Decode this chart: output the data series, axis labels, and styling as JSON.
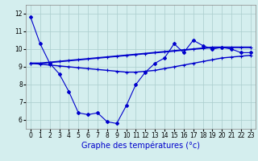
{
  "xlabel": "Graphe des températures (°c)",
  "background_color": "#d4eeee",
  "line_color": "#0000cc",
  "grid_color": "#aacccc",
  "x_hours": [
    0,
    1,
    2,
    3,
    4,
    5,
    6,
    7,
    8,
    9,
    10,
    11,
    12,
    13,
    14,
    15,
    16,
    17,
    18,
    19,
    20,
    21,
    22,
    23
  ],
  "series_volatile": [
    11.8,
    10.3,
    9.2,
    8.6,
    7.6,
    6.4,
    6.3,
    6.4,
    5.9,
    5.8,
    6.8,
    8.0,
    8.7,
    9.2,
    9.5,
    10.3,
    9.8,
    10.5,
    10.2,
    10.0,
    10.1,
    10.0,
    9.8,
    9.8
  ],
  "series_upper": [
    9.2,
    9.2,
    9.25,
    9.3,
    9.35,
    9.4,
    9.45,
    9.5,
    9.55,
    9.6,
    9.65,
    9.7,
    9.75,
    9.8,
    9.85,
    9.9,
    9.95,
    10.0,
    10.05,
    10.1,
    10.1,
    10.1,
    10.1,
    10.1
  ],
  "series_lower": [
    9.2,
    9.15,
    9.1,
    9.05,
    9.0,
    8.95,
    8.9,
    8.85,
    8.8,
    8.75,
    8.7,
    8.7,
    8.75,
    8.8,
    8.9,
    9.0,
    9.1,
    9.2,
    9.3,
    9.4,
    9.5,
    9.55,
    9.6,
    9.65
  ],
  "ylim": [
    5.5,
    12.5
  ],
  "yticks": [
    6,
    7,
    8,
    9,
    10,
    11,
    12
  ],
  "xticks": [
    0,
    1,
    2,
    3,
    4,
    5,
    6,
    7,
    8,
    9,
    10,
    11,
    12,
    13,
    14,
    15,
    16,
    17,
    18,
    19,
    20,
    21,
    22,
    23
  ],
  "tick_fontsize": 5.5,
  "label_fontsize": 7
}
